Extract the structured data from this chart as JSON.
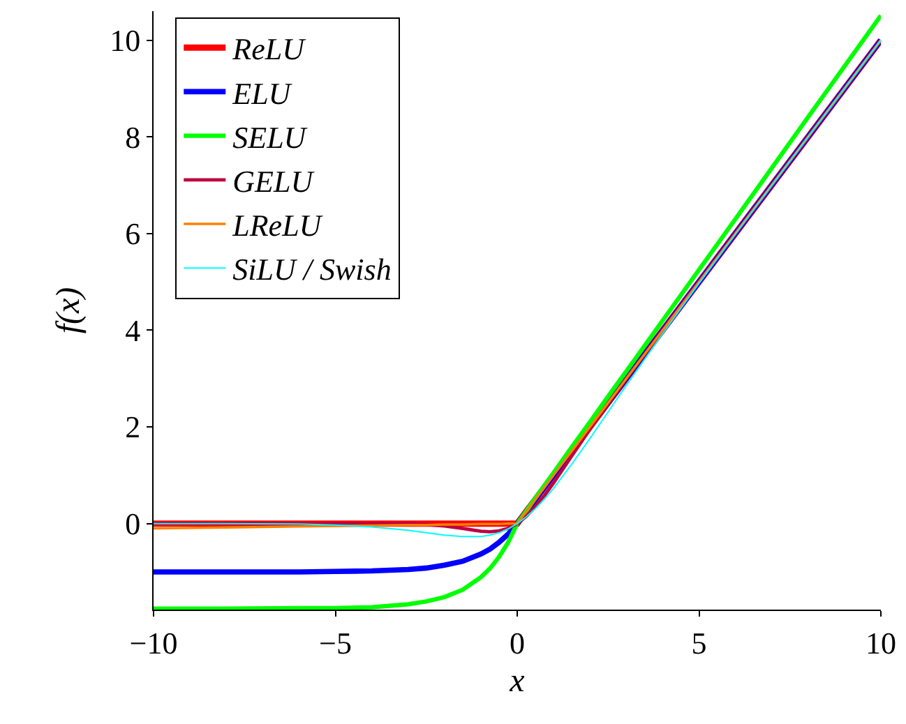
{
  "chart_data": {
    "type": "line",
    "xlabel": "x",
    "ylabel": "f(x)",
    "legend": "top left",
    "x": [
      -10,
      -8,
      -6,
      -5,
      -4,
      -3,
      -2.5,
      -2,
      -1.5,
      -1,
      -0.75,
      -0.5,
      -0.25,
      0,
      0.25,
      0.5,
      0.75,
      1,
      1.5,
      2,
      2.5,
      3,
      4,
      5,
      6,
      8,
      10
    ],
    "xlim": [
      -10,
      10
    ],
    "ylim": [
      -1.78,
      10.6
    ],
    "xticks": [
      {
        "value": -10,
        "label": "−10"
      },
      {
        "value": -5,
        "label": "−5"
      },
      0,
      5,
      10
    ],
    "yticks": [
      0,
      2,
      4,
      6,
      8,
      10
    ],
    "series": [
      {
        "name": "ReLU",
        "color": "#ff0000",
        "values": [
          0,
          0,
          0,
          0,
          0,
          0,
          0,
          0,
          0,
          0,
          0,
          0,
          0,
          0,
          0.25,
          0.5,
          0.75,
          1,
          1.5,
          2,
          2.5,
          3,
          4,
          5,
          6,
          8,
          10
        ]
      },
      {
        "name": "ELU",
        "color": "#0000ff",
        "values": [
          -1,
          -1,
          -1,
          -0.99,
          -0.98,
          -0.95,
          -0.92,
          -0.86,
          -0.78,
          -0.63,
          -0.53,
          -0.39,
          -0.22,
          0,
          0.25,
          0.5,
          0.75,
          1,
          1.5,
          2,
          2.5,
          3,
          4,
          5,
          6,
          8,
          10
        ]
      },
      {
        "name": "SELU",
        "color": "#00ff00",
        "values": [
          -1.76,
          -1.76,
          -1.75,
          -1.75,
          -1.73,
          -1.67,
          -1.61,
          -1.52,
          -1.37,
          -1.11,
          -0.93,
          -0.69,
          -0.39,
          0,
          0.26,
          0.53,
          0.79,
          1.05,
          1.58,
          2.1,
          2.63,
          3.15,
          4.2,
          5.25,
          6.3,
          8.41,
          10.51
        ]
      },
      {
        "name": "GELU",
        "color": "#bf0040",
        "values": [
          0,
          0,
          0,
          0,
          0,
          0,
          -0.02,
          -0.05,
          -0.1,
          -0.16,
          -0.17,
          -0.15,
          -0.1,
          0,
          0.15,
          0.35,
          0.58,
          0.84,
          1.4,
          1.95,
          2.48,
          3,
          4,
          5,
          6,
          8,
          10
        ]
      },
      {
        "name": "LReLU",
        "color": "#ff8000",
        "values": [
          -0.1,
          -0.08,
          -0.06,
          -0.05,
          -0.04,
          -0.03,
          -0.03,
          -0.02,
          -0.02,
          -0.01,
          -0.01,
          -0.01,
          0,
          0,
          0.25,
          0.5,
          0.75,
          1,
          1.5,
          2,
          2.5,
          3,
          4,
          5,
          6,
          8,
          10
        ]
      },
      {
        "name": "SiLU / Swish",
        "color": "#00ffff",
        "values": [
          0,
          0,
          -0.01,
          -0.03,
          -0.07,
          -0.14,
          -0.19,
          -0.24,
          -0.27,
          -0.27,
          -0.24,
          -0.19,
          -0.11,
          0,
          0.14,
          0.31,
          0.51,
          0.73,
          1.23,
          1.76,
          2.31,
          2.86,
          3.93,
          4.97,
          5.99,
          8,
          10
        ]
      }
    ]
  }
}
